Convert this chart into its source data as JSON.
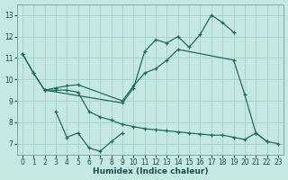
{
  "xlabel": "Humidex (Indice chaleur)",
  "bg_color": "#c5e8e3",
  "grid_color": "#9eccc5",
  "line_color": "#216b5e",
  "xlim": [
    -0.5,
    23.5
  ],
  "ylim": [
    6.5,
    13.5
  ],
  "xticks": [
    0,
    1,
    2,
    3,
    4,
    5,
    6,
    7,
    8,
    9,
    10,
    11,
    12,
    13,
    14,
    15,
    16,
    17,
    18,
    19,
    20,
    21,
    22,
    23
  ],
  "yticks": [
    7,
    8,
    9,
    10,
    11,
    12,
    13
  ],
  "lines": [
    {
      "x": [
        0,
        1,
        2,
        9,
        10,
        11,
        12,
        13,
        14,
        15,
        16,
        17,
        18,
        19
      ],
      "y": [
        11.2,
        10.3,
        9.5,
        8.9,
        9.6,
        11.3,
        11.85,
        11.7,
        12.0,
        11.5,
        12.1,
        13.0,
        12.65,
        12.2
      ]
    },
    {
      "x": [
        0,
        1,
        2,
        3,
        4,
        5,
        9,
        10,
        11,
        12,
        13,
        14,
        19,
        20,
        21,
        22
      ],
      "y": [
        11.2,
        10.3,
        9.5,
        9.6,
        9.7,
        9.75,
        9.0,
        9.7,
        10.3,
        10.5,
        10.9,
        11.4,
        10.9,
        9.3,
        7.5,
        7.1
      ]
    },
    {
      "x": [
        3,
        4,
        5,
        6,
        7,
        8,
        9
      ],
      "y": [
        8.5,
        7.3,
        7.5,
        6.8,
        6.65,
        7.1,
        7.5
      ]
    },
    {
      "x": [
        2,
        3,
        4,
        5,
        6,
        7,
        8,
        9,
        10,
        11,
        12,
        13,
        14,
        15,
        16,
        17,
        18,
        19,
        20,
        21,
        22,
        23
      ],
      "y": [
        9.5,
        9.5,
        9.5,
        9.4,
        8.5,
        8.25,
        8.1,
        7.9,
        7.8,
        7.7,
        7.65,
        7.6,
        7.55,
        7.5,
        7.45,
        7.4,
        7.4,
        7.3,
        7.2,
        7.5,
        7.1,
        7.0
      ]
    }
  ]
}
